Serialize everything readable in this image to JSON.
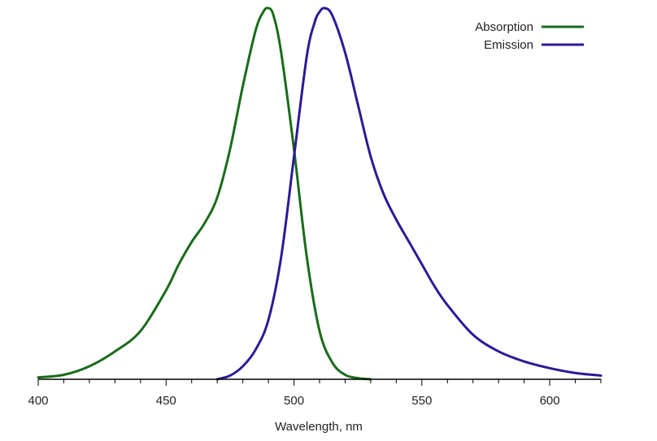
{
  "chart_data": {
    "type": "line",
    "title": "",
    "xlabel": "Wavelength, nm",
    "ylabel": "",
    "xlim": [
      400,
      620
    ],
    "ylim": [
      0,
      1
    ],
    "x_ticks": [
      "400",
      "450",
      "500",
      "550",
      "600"
    ],
    "grid": false,
    "legend_position": "top-right",
    "series": [
      {
        "name": "Absorption",
        "color": "#1a6b1a",
        "x": [
          400,
          410,
          420,
          430,
          440,
          450,
          455,
          460,
          465,
          470,
          475,
          480,
          485,
          488,
          490,
          492,
          495,
          500,
          505,
          510,
          515,
          520,
          525,
          530
        ],
        "y": [
          0.005,
          0.012,
          0.035,
          0.075,
          0.13,
          0.24,
          0.31,
          0.37,
          0.42,
          0.49,
          0.62,
          0.79,
          0.94,
          0.99,
          1.0,
          0.98,
          0.88,
          0.62,
          0.33,
          0.13,
          0.045,
          0.012,
          0.003,
          0.0
        ]
      },
      {
        "name": "Emission",
        "color": "#2b1a96",
        "x": [
          470,
          475,
          480,
          485,
          490,
          495,
          500,
          505,
          508,
          510,
          512,
          515,
          520,
          525,
          530,
          535,
          540,
          545,
          550,
          555,
          560,
          570,
          580,
          590,
          600,
          610,
          620
        ],
        "y": [
          0.0,
          0.01,
          0.035,
          0.08,
          0.16,
          0.33,
          0.6,
          0.87,
          0.96,
          0.99,
          1.0,
          0.98,
          0.88,
          0.74,
          0.6,
          0.5,
          0.43,
          0.37,
          0.31,
          0.25,
          0.2,
          0.12,
          0.075,
          0.048,
          0.03,
          0.017,
          0.01
        ]
      }
    ]
  }
}
